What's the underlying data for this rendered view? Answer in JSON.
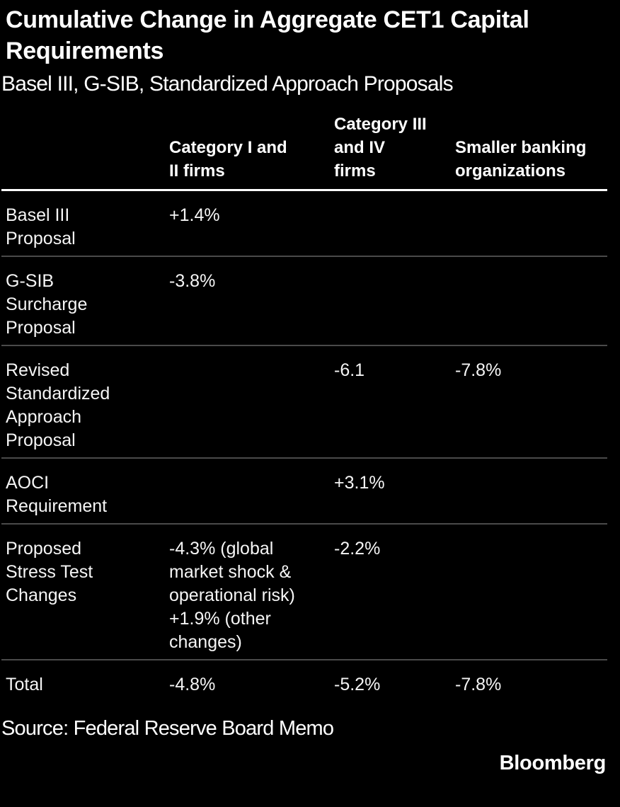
{
  "title": "Cumulative Change in Aggregate CET1 Capital Requirements",
  "subtitle": "Basel III, G-SIB, Standardized Approach Proposals",
  "source": "Source: Federal Reserve Board Memo",
  "brand": "Bloomberg",
  "colors": {
    "background": "#000000",
    "text": "#f5f5f5",
    "header_text": "#ffffff",
    "header_rule": "#ffffff",
    "row_divider": "#4a4a4a"
  },
  "chart_data": {
    "type": "table",
    "title": "Cumulative Change in Aggregate CET1 Capital Requirements",
    "subtitle": "Basel III, G-SIB, Standardized Approach Proposals",
    "columns": [
      "",
      "Category I and II firms",
      "Category III and IV firms",
      "Smaller banking organizations"
    ],
    "rows": [
      {
        "label": "Basel III Proposal",
        "cells": [
          "+1.4%",
          "",
          ""
        ]
      },
      {
        "label": "G-SIB Surcharge Proposal",
        "cells": [
          "-3.8%",
          "",
          ""
        ]
      },
      {
        "label": "Revised Standardized Approach Proposal",
        "cells": [
          "",
          "-6.1",
          "-7.8%"
        ]
      },
      {
        "label": "AOCI Requirement",
        "cells": [
          "",
          "+3.1%",
          ""
        ]
      },
      {
        "label": "Proposed Stress Test Changes",
        "cells": [
          "-4.3% (global market shock & operational risk) +1.9% (other changes)",
          "-2.2%",
          ""
        ]
      },
      {
        "label": "Total",
        "cells": [
          "-4.8%",
          "-5.2%",
          "-7.8%"
        ]
      }
    ],
    "source": "Source: Federal Reserve Board Memo",
    "layout": {
      "grid": "off",
      "legend": "none"
    }
  }
}
